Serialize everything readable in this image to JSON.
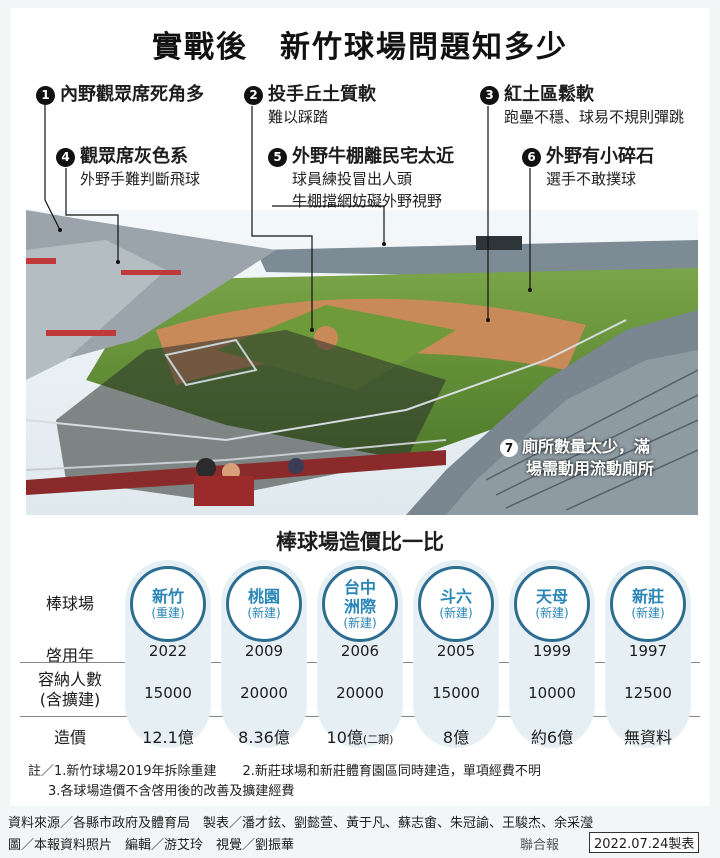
{
  "title": "實戰後　新竹球場問題知多少",
  "issues": [
    {
      "num": "1",
      "head": "內野觀眾席死角多",
      "sub": []
    },
    {
      "num": "2",
      "head": "投手丘土質軟",
      "sub": [
        "難以踩踏"
      ]
    },
    {
      "num": "3",
      "head": "紅土區鬆軟",
      "sub": [
        "跑壘不穩、球易不規則彈跳"
      ]
    },
    {
      "num": "4",
      "head": "觀眾席灰色系",
      "sub": [
        "外野手難判斷飛球"
      ]
    },
    {
      "num": "5",
      "head": "外野牛棚離民宅太近",
      "sub": [
        "球員練投冒出人頭",
        "牛棚擋網妨礙外野視野"
      ]
    },
    {
      "num": "6",
      "head": "外野有小碎石",
      "sub": [
        "選手不敢撲球"
      ]
    }
  ],
  "photo_note": {
    "num": "7",
    "lines": [
      "廁所數量太少，滿",
      "場需動用流動廁所"
    ]
  },
  "comparison": {
    "title": "棒球場造價比一比",
    "row_labels": {
      "stadium": "棒球場",
      "year": "啓用年",
      "capacity": [
        "容納人數",
        "(含擴建)"
      ],
      "cost": "造價"
    },
    "stadiums": [
      {
        "name": [
          "新竹"
        ],
        "type": "(重建)",
        "year": "2022",
        "capacity": "15000",
        "cost": "12.1億",
        "cost_note": ""
      },
      {
        "name": [
          "桃園"
        ],
        "type": "(新建)",
        "year": "2009",
        "capacity": "20000",
        "cost": "8.36億",
        "cost_note": ""
      },
      {
        "name": [
          "台中",
          "洲際"
        ],
        "type": "(新建)",
        "year": "2006",
        "capacity": "20000",
        "cost": "10億",
        "cost_note": "(二期)"
      },
      {
        "name": [
          "斗六"
        ],
        "type": "(新建)",
        "year": "2005",
        "capacity": "15000",
        "cost": "8億",
        "cost_note": ""
      },
      {
        "name": [
          "天母"
        ],
        "type": "(新建)",
        "year": "1999",
        "capacity": "10000",
        "cost": "約6億",
        "cost_note": ""
      },
      {
        "name": [
          "新莊"
        ],
        "type": "(新建)",
        "year": "1997",
        "capacity": "12500",
        "cost": "無資料",
        "cost_note": ""
      }
    ]
  },
  "notes": [
    "註／1.新竹球場2019年拆除重建　　2.新莊球場和新莊體育園區同時建造，單項經費不明",
    "3.各球場造價不含啓用後的改善及擴建經費"
  ],
  "source": [
    "資料來源／各縣市政府及體育局　製表／潘才鉉、劉懿萱、黃于凡、蘇志畬、朱冠諭、王駿杰、余采瀅",
    "圖／本報資料照片　編輯／游艾玲　視覺／劉振華"
  ],
  "brand": "聯合報",
  "date": "2022.07.24製表",
  "colors": {
    "accent": "#2d6e90",
    "accent_text": "#2a86b6",
    "field_grass": "#6f9a3a",
    "infield_dirt": "#c98a5a"
  }
}
